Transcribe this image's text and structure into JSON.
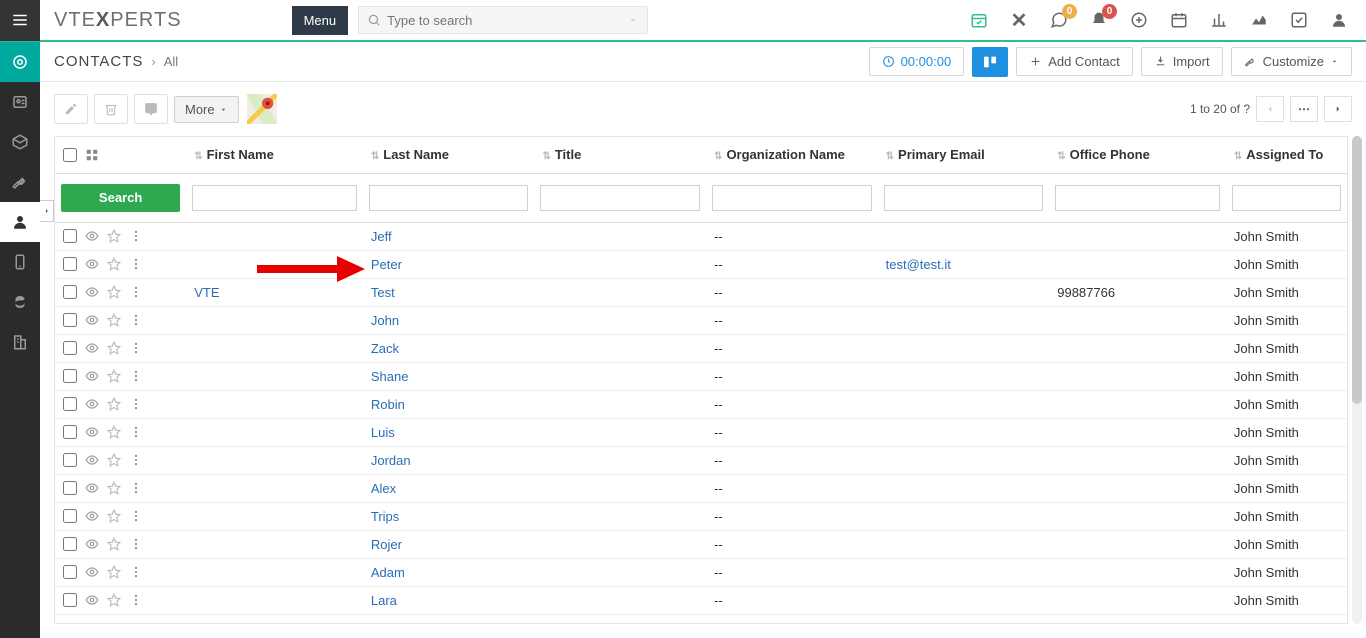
{
  "top": {
    "logo_a": "VT",
    "logo_b": "E",
    "logo_c": "X",
    "logo_d": "PERTS",
    "menu": "Menu",
    "search_placeholder": "Type to search",
    "badges": {
      "chat": "0",
      "bell": "0"
    }
  },
  "crumb": {
    "module": "CONTACTS",
    "sub": "All"
  },
  "actions": {
    "timer": "00:00:00",
    "add": "Add Contact",
    "import": "Import",
    "customize": "Customize"
  },
  "toolbar": {
    "more": "More",
    "page_label": "1 to 20  of  ?"
  },
  "table": {
    "search": "Search",
    "cols": [
      "First Name",
      "Last Name",
      "Title",
      "Organization Name",
      "Primary Email",
      "Office Phone",
      "Assigned To"
    ],
    "rows": [
      {
        "fn": "",
        "ln": "Jeff",
        "title": "",
        "org": "--",
        "email": "",
        "phone": "",
        "assigned": "John Smith"
      },
      {
        "fn": "",
        "ln": "Peter",
        "title": "",
        "org": "--",
        "email": "test@test.it",
        "phone": "",
        "assigned": "John Smith"
      },
      {
        "fn": "VTE",
        "ln": "Test",
        "title": "",
        "org": "--",
        "email": "",
        "phone": "99887766",
        "assigned": "John Smith"
      },
      {
        "fn": "",
        "ln": "John",
        "title": "",
        "org": "--",
        "email": "",
        "phone": "",
        "assigned": "John Smith"
      },
      {
        "fn": "",
        "ln": "Zack",
        "title": "",
        "org": "--",
        "email": "",
        "phone": "",
        "assigned": "John Smith"
      },
      {
        "fn": "",
        "ln": "Shane",
        "title": "",
        "org": "--",
        "email": "",
        "phone": "",
        "assigned": "John Smith"
      },
      {
        "fn": "",
        "ln": "Robin",
        "title": "",
        "org": "--",
        "email": "",
        "phone": "",
        "assigned": "John Smith"
      },
      {
        "fn": "",
        "ln": "Luis",
        "title": "",
        "org": "--",
        "email": "",
        "phone": "",
        "assigned": "John Smith"
      },
      {
        "fn": "",
        "ln": "Jordan",
        "title": "",
        "org": "--",
        "email": "",
        "phone": "",
        "assigned": "John Smith"
      },
      {
        "fn": "",
        "ln": "Alex",
        "title": "",
        "org": "--",
        "email": "",
        "phone": "",
        "assigned": "John Smith"
      },
      {
        "fn": "",
        "ln": "Trips",
        "title": "",
        "org": "--",
        "email": "",
        "phone": "",
        "assigned": "John Smith"
      },
      {
        "fn": "",
        "ln": "Rojer",
        "title": "",
        "org": "--",
        "email": "",
        "phone": "",
        "assigned": "John Smith"
      },
      {
        "fn": "",
        "ln": "Adam",
        "title": "",
        "org": "--",
        "email": "",
        "phone": "",
        "assigned": "John Smith"
      },
      {
        "fn": "",
        "ln": "Lara",
        "title": "",
        "org": "--",
        "email": "",
        "phone": "",
        "assigned": "John Smith"
      }
    ]
  },
  "colors": {
    "accent": "#2fbf8e",
    "link": "#2a6db5",
    "search_btn": "#2fa84f",
    "board": "#1f8fe0"
  }
}
